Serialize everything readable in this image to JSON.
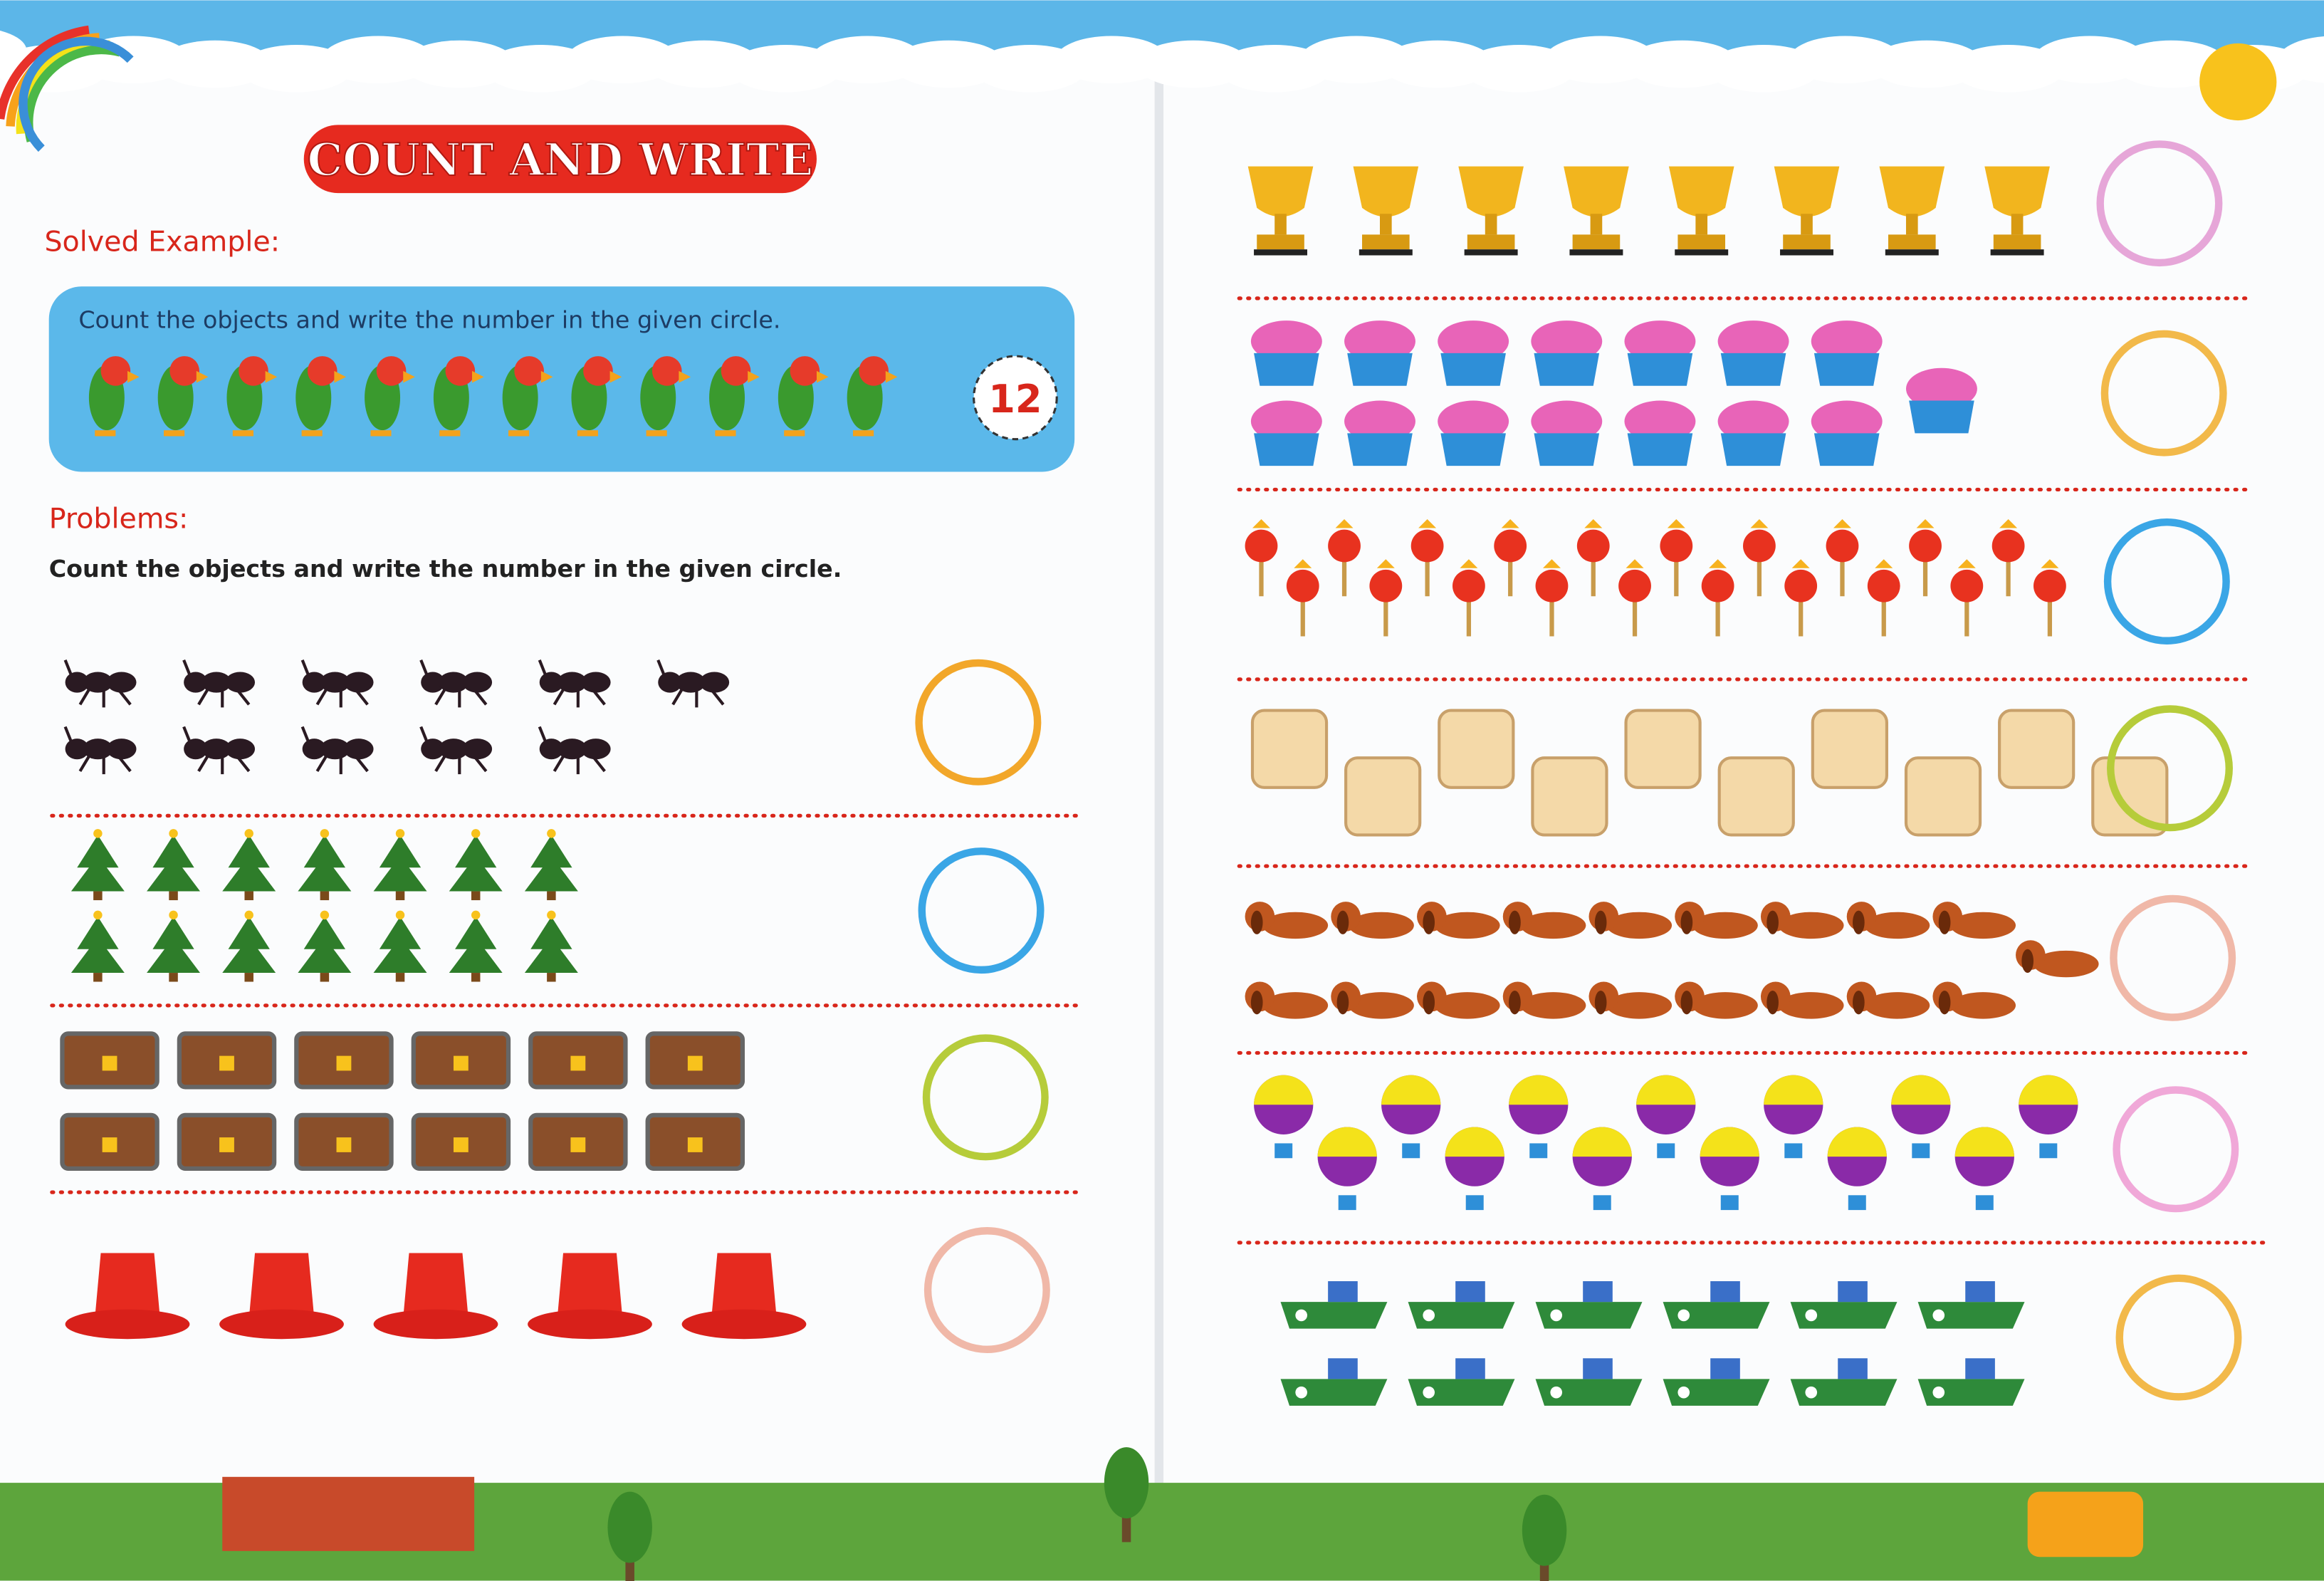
{
  "header": {
    "title": "COUNT AND WRITE"
  },
  "solved_example": {
    "label": "Solved Example:",
    "instruction": "Count the objects and write the number in the given circle.",
    "answer": "12"
  },
  "problems": {
    "label": "Problems:",
    "instruction": "Count the objects and write the number in the given circle."
  }
}
